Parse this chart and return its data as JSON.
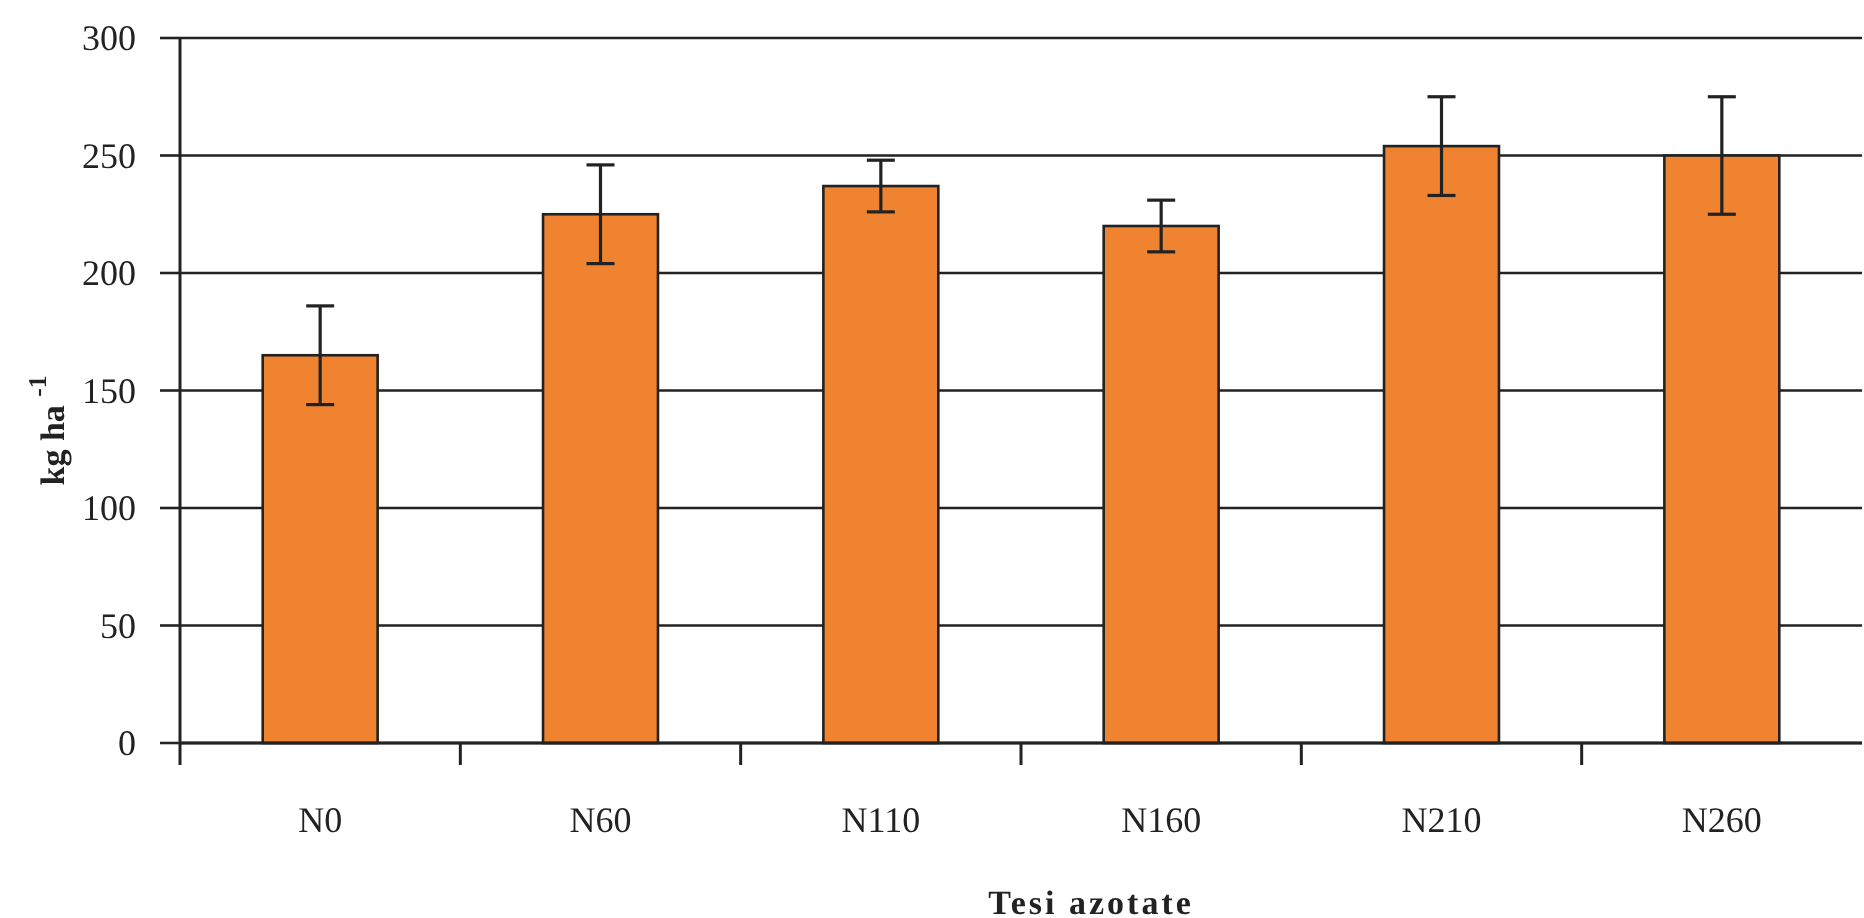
{
  "chart_data": {
    "type": "bar",
    "xlabel": "Tesi azotate",
    "ylabel": "kg ha $^{-1}$",
    "categories": [
      "N0",
      "N60",
      "N110",
      "N160",
      "N210",
      "N260"
    ],
    "values": [
      165,
      225,
      237,
      220,
      254,
      250
    ],
    "errors": [
      21,
      21,
      11,
      11,
      21,
      25
    ],
    "color": "#f0832f",
    "ylim": [
      0,
      300
    ],
    "yticks": [
      0,
      50,
      100,
      150,
      200,
      250,
      300
    ],
    "grid": "y"
  }
}
